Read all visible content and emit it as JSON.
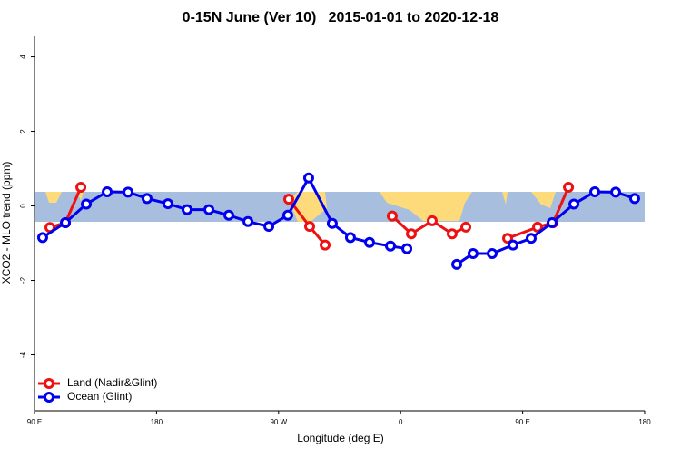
{
  "chart_data": {
    "type": "line",
    "title": "0-15N June (Ver 10)   2015-01-01 to 2020-12-18",
    "x_label": "Longitude (deg E)",
    "y_label": "XCO2 - MLO trend (ppm)",
    "xlim": [
      90,
      540
    ],
    "ylim": [
      -5.5,
      4.55
    ],
    "xticks": [
      {
        "value": 90,
        "label": "90 E"
      },
      {
        "value": 180,
        "label": "180"
      },
      {
        "value": 270,
        "label": "90 W"
      },
      {
        "value": 360,
        "label": "0"
      },
      {
        "value": 450,
        "label": "90 E"
      },
      {
        "value": 540,
        "label": "180"
      }
    ],
    "yticks": [
      -4,
      -2,
      0,
      2,
      4
    ],
    "legend": "bottom-left",
    "series": [
      {
        "name": "Land (Nadir&Glint)",
        "color": "#ee1111",
        "x": [
          101.4,
          112.8,
          124.2,
          null,
          277.5,
          292.9,
          304.3,
          null,
          353.8,
          367.9,
          383.3,
          398,
          408.1,
          null,
          438.9,
          461,
          472.4,
          483.8
        ],
        "values": [
          -0.58,
          -0.45,
          0.5,
          null,
          0.18,
          -0.55,
          -1.05,
          null,
          -0.27,
          -0.75,
          -0.4,
          -0.75,
          -0.57,
          null,
          -0.87,
          -0.57,
          -0.45,
          0.5
        ]
      },
      {
        "name": "Ocean (Glint)",
        "color": "#0000ee",
        "x": [
          96,
          112.8,
          128.2,
          143.6,
          159,
          173,
          188.4,
          202.5,
          218.6,
          233.3,
          247.4,
          262.8,
          276.8,
          292.2,
          309.6,
          323,
          337.1,
          352.5,
          364.6,
          null,
          401.4,
          413.4,
          427.5,
          442.9,
          456.3,
          471.7,
          487.8,
          503.2,
          518.6,
          532.6
        ],
        "values": [
          -0.85,
          -0.45,
          0.05,
          0.38,
          0.37,
          0.2,
          0.06,
          -0.1,
          -0.1,
          -0.25,
          -0.42,
          -0.55,
          -0.25,
          0.75,
          -0.47,
          -0.85,
          -0.98,
          -1.08,
          -1.15,
          null,
          -1.57,
          -1.28,
          -1.28,
          -1.05,
          -0.87,
          -0.45,
          0.05,
          0.38,
          0.37,
          0.2
        ]
      }
    ]
  }
}
